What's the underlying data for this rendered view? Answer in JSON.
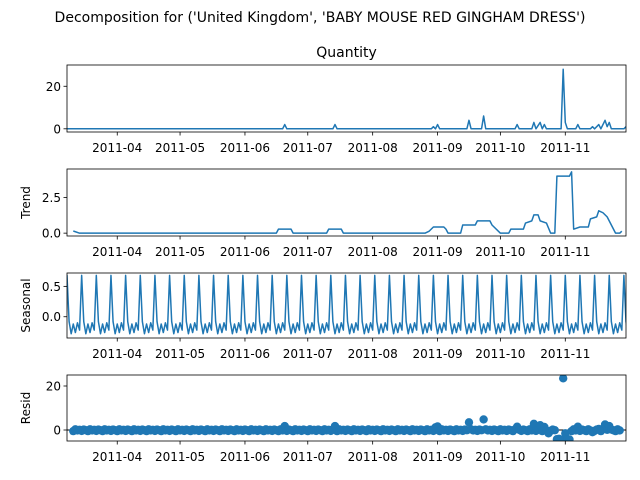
{
  "figure": {
    "suptitle": "Decomposition for ('United Kingdom', 'BABY MOUSE RED GINGHAM DRESS')"
  },
  "chart_data": [
    {
      "type": "line",
      "title": "Quantity",
      "ylabel": "",
      "xlim": [
        "2011-03-08",
        "2011-11-30"
      ],
      "ylim": [
        -1.5,
        30
      ],
      "xticks": [
        "2011-04",
        "2011-05",
        "2011-06",
        "2011-07",
        "2011-08",
        "2011-09",
        "2011-10",
        "2011-11"
      ],
      "yticks": [
        0,
        20
      ],
      "color": "#1f77b4",
      "points": [
        [
          "2011-03-08",
          0
        ],
        [
          "2011-06-19",
          0
        ],
        [
          "2011-06-20",
          2
        ],
        [
          "2011-06-21",
          0
        ],
        [
          "2011-07-13",
          0
        ],
        [
          "2011-07-14",
          2
        ],
        [
          "2011-07-15",
          0
        ],
        [
          "2011-08-29",
          0
        ],
        [
          "2011-08-30",
          1
        ],
        [
          "2011-08-31",
          0
        ],
        [
          "2011-09-01",
          2
        ],
        [
          "2011-09-02",
          0
        ],
        [
          "2011-09-15",
          0
        ],
        [
          "2011-09-16",
          4
        ],
        [
          "2011-09-17",
          0
        ],
        [
          "2011-09-22",
          0
        ],
        [
          "2011-09-23",
          6
        ],
        [
          "2011-09-24",
          0
        ],
        [
          "2011-10-08",
          0
        ],
        [
          "2011-10-09",
          2
        ],
        [
          "2011-10-10",
          0
        ],
        [
          "2011-10-16",
          0
        ],
        [
          "2011-10-17",
          3
        ],
        [
          "2011-10-18",
          0
        ],
        [
          "2011-10-20",
          3
        ],
        [
          "2011-10-21",
          0
        ],
        [
          "2011-10-22",
          2
        ],
        [
          "2011-10-23",
          0
        ],
        [
          "2011-10-30",
          0
        ],
        [
          "2011-10-31",
          28
        ],
        [
          "2011-11-01",
          3
        ],
        [
          "2011-11-02",
          0
        ],
        [
          "2011-11-06",
          0
        ],
        [
          "2011-11-07",
          2
        ],
        [
          "2011-11-08",
          0
        ],
        [
          "2011-11-13",
          0
        ],
        [
          "2011-11-14",
          1
        ],
        [
          "2011-11-15",
          0
        ],
        [
          "2011-11-17",
          2
        ],
        [
          "2011-11-18",
          0
        ],
        [
          "2011-11-20",
          4
        ],
        [
          "2011-11-21",
          1
        ],
        [
          "2011-11-22",
          3
        ],
        [
          "2011-11-23",
          0
        ],
        [
          "2011-11-29",
          0
        ],
        [
          "2011-11-30",
          1
        ]
      ]
    },
    {
      "type": "line",
      "title": "",
      "ylabel": "Trend",
      "xlim": [
        "2011-03-08",
        "2011-11-30"
      ],
      "ylim": [
        -0.2,
        4.5
      ],
      "xticks": [
        "2011-04",
        "2011-05",
        "2011-06",
        "2011-07",
        "2011-08",
        "2011-09",
        "2011-10",
        "2011-11"
      ],
      "yticks": [
        0.0,
        2.5
      ],
      "color": "#1f77b4",
      "points": [
        [
          "2011-03-11",
          0.15
        ],
        [
          "2011-03-14",
          0
        ],
        [
          "2011-06-16",
          0
        ],
        [
          "2011-06-17",
          0.28
        ],
        [
          "2011-06-23",
          0.28
        ],
        [
          "2011-06-24",
          0
        ],
        [
          "2011-07-10",
          0
        ],
        [
          "2011-07-11",
          0.28
        ],
        [
          "2011-07-17",
          0.28
        ],
        [
          "2011-07-18",
          0
        ],
        [
          "2011-08-26",
          0
        ],
        [
          "2011-08-28",
          0.14
        ],
        [
          "2011-08-30",
          0.43
        ],
        [
          "2011-09-04",
          0.43
        ],
        [
          "2011-09-05",
          0.28
        ],
        [
          "2011-09-06",
          0
        ],
        [
          "2011-09-12",
          0
        ],
        [
          "2011-09-13",
          0.57
        ],
        [
          "2011-09-19",
          0.57
        ],
        [
          "2011-09-20",
          0.86
        ],
        [
          "2011-09-26",
          0.86
        ],
        [
          "2011-09-27",
          0.57
        ],
        [
          "2011-10-01",
          0
        ],
        [
          "2011-10-05",
          0
        ],
        [
          "2011-10-06",
          0.28
        ],
        [
          "2011-10-12",
          0.28
        ],
        [
          "2011-10-13",
          0.71
        ],
        [
          "2011-10-16",
          0.86
        ],
        [
          "2011-10-17",
          1.28
        ],
        [
          "2011-10-19",
          1.28
        ],
        [
          "2011-10-20",
          0.86
        ],
        [
          "2011-10-23",
          0.71
        ],
        [
          "2011-10-25",
          0
        ],
        [
          "2011-10-27",
          0
        ],
        [
          "2011-10-28",
          4.0
        ],
        [
          "2011-11-03",
          4.0
        ],
        [
          "2011-11-04",
          4.3
        ],
        [
          "2011-11-05",
          0.28
        ],
        [
          "2011-11-08",
          0.43
        ],
        [
          "2011-11-12",
          0.43
        ],
        [
          "2011-11-13",
          1.0
        ],
        [
          "2011-11-16",
          1.14
        ],
        [
          "2011-11-17",
          1.57
        ],
        [
          "2011-11-19",
          1.43
        ],
        [
          "2011-11-21",
          1.14
        ],
        [
          "2011-11-23",
          0.57
        ],
        [
          "2011-11-25",
          0
        ],
        [
          "2011-11-27",
          0
        ],
        [
          "2011-11-28",
          0.14
        ]
      ]
    },
    {
      "type": "line",
      "title": "",
      "ylabel": "Seasonal",
      "xlim": [
        "2011-03-08",
        "2011-11-30"
      ],
      "ylim": [
        -0.35,
        0.72
      ],
      "xticks": [
        "2011-04",
        "2011-05",
        "2011-06",
        "2011-07",
        "2011-08",
        "2011-09",
        "2011-10",
        "2011-11"
      ],
      "yticks": [
        0.0,
        0.5
      ],
      "color": "#1f77b4",
      "period_start": "2011-03-08",
      "period_days": 7,
      "weekly_pattern": [
        0.68,
        -0.08,
        -0.28,
        -0.12,
        -0.26,
        -0.1,
        -0.22
      ],
      "points_end": "2011-11-30"
    },
    {
      "type": "scatter",
      "title": "",
      "ylabel": "Resid",
      "xlim": [
        "2011-03-08",
        "2011-11-30"
      ],
      "ylim": [
        -5,
        25
      ],
      "xticks": [
        "2011-04",
        "2011-05",
        "2011-06",
        "2011-07",
        "2011-08",
        "2011-09",
        "2011-10",
        "2011-11"
      ],
      "yticks": [
        0,
        20
      ],
      "color": "#1f77b4",
      "baseline": 0,
      "points_default": {
        "start": "2011-03-11",
        "end": "2011-11-27",
        "value_pattern": [
          -0.5,
          0.3,
          -0.2,
          0.1,
          -0.4,
          0.2,
          -0.1
        ]
      },
      "points_override": [
        [
          "2011-06-20",
          1.8
        ],
        [
          "2011-07-14",
          1.8
        ],
        [
          "2011-08-31",
          1.2
        ],
        [
          "2011-09-01",
          1.6
        ],
        [
          "2011-09-16",
          3.5
        ],
        [
          "2011-09-23",
          4.8
        ],
        [
          "2011-10-09",
          1.5
        ],
        [
          "2011-10-17",
          2.8
        ],
        [
          "2011-10-20",
          2.2
        ],
        [
          "2011-10-22",
          1.4
        ],
        [
          "2011-10-24",
          -1.5
        ],
        [
          "2011-10-28",
          -4.2
        ],
        [
          "2011-10-29",
          -4.0
        ],
        [
          "2011-10-30",
          -4.4
        ],
        [
          "2011-10-31",
          23.5
        ],
        [
          "2011-11-01",
          -1.5
        ],
        [
          "2011-11-02",
          -4.2
        ],
        [
          "2011-11-03",
          -4.3
        ],
        [
          "2011-11-07",
          1.5
        ],
        [
          "2011-11-14",
          -1.0
        ],
        [
          "2011-11-17",
          0.5
        ],
        [
          "2011-11-20",
          2.5
        ],
        [
          "2011-11-22",
          1.8
        ]
      ]
    }
  ]
}
